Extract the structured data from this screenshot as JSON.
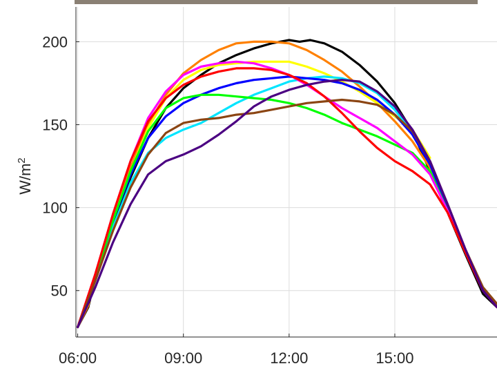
{
  "chart_data": {
    "type": "line",
    "title": "",
    "xlabel": "",
    "ylabel": "W/m",
    "ylabel_superscript": "2",
    "ylim": [
      22,
      221
    ],
    "xlim": [
      5.95,
      17.9
    ],
    "grid": true,
    "x_ticks": [
      {
        "value": 6,
        "label": "06:00"
      },
      {
        "value": 9,
        "label": "09:00"
      },
      {
        "value": 12,
        "label": "12:00"
      },
      {
        "value": 15,
        "label": "15:00"
      }
    ],
    "y_ticks": [
      {
        "value": 50,
        "label": "50"
      },
      {
        "value": 100,
        "label": "100"
      },
      {
        "value": 150,
        "label": "150"
      },
      {
        "value": 200,
        "label": "200"
      }
    ],
    "series": [
      {
        "color": "#000000",
        "x": [
          6.0,
          6.3,
          6.5,
          7.0,
          7.5,
          8.0,
          8.5,
          9.0,
          9.5,
          10.0,
          10.5,
          11.0,
          11.5,
          12.0,
          12.3,
          12.6,
          13.0,
          13.5,
          14.0,
          14.5,
          15.0,
          15.5,
          16.0,
          16.5,
          17.0,
          17.5,
          17.9
        ],
        "y": [
          28,
          40,
          58,
          90,
          118,
          142,
          160,
          172,
          180,
          187,
          192,
          196,
          199,
          201,
          200,
          201,
          199,
          194,
          186,
          176,
          163,
          146,
          122,
          97,
          72,
          48,
          40
        ]
      },
      {
        "color": "#ff8000",
        "x": [
          6.0,
          6.3,
          6.5,
          7.0,
          7.5,
          8.0,
          8.5,
          9.0,
          9.5,
          10.0,
          10.5,
          11.0,
          11.5,
          12.0,
          12.5,
          13.0,
          13.5,
          14.0,
          14.5,
          15.0,
          15.5,
          16.0,
          16.5,
          17.0,
          17.5,
          17.9
        ],
        "y": [
          28,
          41,
          60,
          94,
          124,
          150,
          168,
          181,
          189,
          195,
          199,
          200,
          200,
          199,
          195,
          189,
          182,
          173,
          163,
          152,
          140,
          124,
          100,
          74,
          50,
          40
        ]
      },
      {
        "color": "#ffff00",
        "x": [
          6.0,
          6.5,
          7.0,
          7.5,
          8.0,
          8.5,
          9.0,
          9.5,
          10.0,
          10.5,
          11.0,
          11.5,
          12.0,
          12.5,
          13.0,
          13.5,
          14.0,
          14.5,
          15.0,
          15.5,
          16.0
        ],
        "y": [
          28,
          58,
          92,
          122,
          148,
          166,
          177,
          183,
          186,
          187,
          188,
          188,
          188,
          185,
          181,
          176,
          170,
          163,
          155,
          147,
          130
        ]
      },
      {
        "color": "#00e5ff",
        "x": [
          6.0,
          6.5,
          7.0,
          7.5,
          8.0,
          8.5,
          9.0,
          9.5,
          10.0,
          10.5,
          11.0,
          11.5,
          12.0,
          12.5,
          13.0,
          13.5,
          14.0,
          14.5,
          15.0,
          15.5,
          16.0,
          16.5,
          17.0,
          17.5,
          17.9
        ],
        "y": [
          28,
          56,
          88,
          115,
          133,
          142,
          147,
          151,
          157,
          163,
          168,
          172,
          176,
          178,
          179,
          178,
          175,
          169,
          159,
          145,
          126,
          100,
          74,
          50,
          40
        ]
      },
      {
        "color": "#0000ff",
        "x": [
          6.0,
          6.5,
          7.0,
          7.5,
          8.0,
          8.5,
          9.0,
          9.5,
          10.0,
          10.5,
          11.0,
          11.5,
          12.0,
          12.5,
          13.0,
          13.5,
          14.0,
          14.5,
          15.0,
          15.5,
          16.0,
          16.5,
          17.0,
          17.5,
          17.9
        ],
        "y": [
          28,
          58,
          92,
          120,
          142,
          155,
          163,
          168,
          172,
          175,
          177,
          178,
          179,
          178,
          177,
          175,
          171,
          165,
          156,
          144,
          126,
          100,
          74,
          50,
          40
        ]
      },
      {
        "color": "#00ff00",
        "x": [
          6.0,
          6.5,
          7.0,
          7.5,
          8.0,
          8.5,
          9.0,
          9.5,
          10.0,
          10.5,
          11.0,
          11.5,
          12.0,
          12.5,
          13.0,
          13.5,
          14.0,
          14.5,
          15.0,
          15.5,
          16.0,
          16.5,
          17.0,
          17.5,
          17.9
        ],
        "y": [
          28,
          58,
          92,
          122,
          146,
          160,
          166,
          168,
          168,
          167,
          166,
          165,
          163,
          160,
          156,
          151,
          147,
          143,
          138,
          133,
          122,
          98,
          73,
          50,
          40
        ]
      },
      {
        "color": "#ff00ff",
        "x": [
          6.0,
          6.5,
          7.0,
          7.5,
          8.0,
          8.5,
          9.0,
          9.5,
          10.0,
          10.5,
          11.0,
          11.5,
          12.0,
          12.5,
          13.0,
          13.5,
          14.0,
          14.5,
          15.0,
          15.5,
          16.0,
          16.5,
          17.0,
          17.5,
          17.9
        ],
        "y": [
          28,
          60,
          96,
          128,
          154,
          170,
          180,
          185,
          187,
          188,
          187,
          184,
          180,
          174,
          167,
          160,
          154,
          148,
          140,
          132,
          120,
          98,
          73,
          50,
          40
        ]
      },
      {
        "color": "#ff0000",
        "x": [
          6.0,
          6.5,
          7.0,
          7.5,
          8.0,
          8.5,
          9.0,
          9.5,
          10.0,
          10.5,
          11.0,
          11.5,
          12.0,
          12.5,
          13.0,
          13.5,
          14.0,
          14.5,
          15.0,
          15.5,
          16.0,
          16.5,
          17.0,
          17.5,
          17.9
        ],
        "y": [
          28,
          60,
          96,
          128,
          152,
          166,
          174,
          179,
          182,
          184,
          184,
          183,
          180,
          175,
          167,
          157,
          146,
          136,
          128,
          122,
          114,
          97,
          73,
          50,
          40
        ]
      },
      {
        "color": "#8b4513",
        "x": [
          6.0,
          6.5,
          7.0,
          7.5,
          8.0,
          8.5,
          9.0,
          9.5,
          10.0,
          10.5,
          11.0,
          11.5,
          12.0,
          12.5,
          13.0,
          13.5,
          14.0,
          14.5,
          15.0,
          15.5,
          16.0,
          16.5,
          17.0,
          17.5,
          17.9
        ],
        "y": [
          28,
          56,
          86,
          112,
          132,
          145,
          151,
          153,
          154,
          156,
          157,
          159,
          161,
          163,
          164,
          165,
          164,
          162,
          156,
          146,
          128,
          102,
          75,
          52,
          42
        ]
      },
      {
        "color": "#4b0082",
        "x": [
          6.0,
          6.5,
          7.0,
          7.5,
          8.0,
          8.5,
          9.0,
          9.5,
          10.0,
          10.5,
          11.0,
          11.5,
          12.0,
          12.5,
          13.0,
          13.5,
          14.0,
          14.5,
          15.0,
          15.5,
          16.0,
          16.5,
          17.0,
          17.5,
          17.9
        ],
        "y": [
          28,
          52,
          79,
          102,
          120,
          128,
          132,
          137,
          144,
          152,
          161,
          167,
          171,
          174,
          176,
          177,
          176,
          170,
          161,
          147,
          128,
          102,
          75,
          50,
          40
        ]
      }
    ]
  }
}
